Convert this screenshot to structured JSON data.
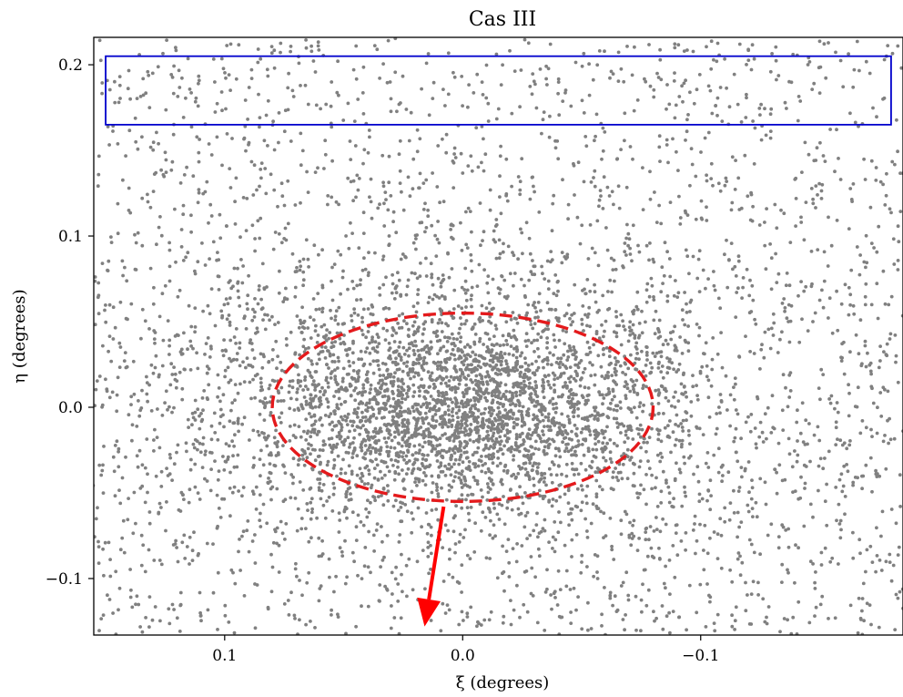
{
  "chart_data": {
    "type": "scatter",
    "title": "Cas III",
    "xlabel": "ξ (degrees)",
    "ylabel": "η (degrees)",
    "x_inverted": true,
    "xlim": [
      0.155,
      -0.185
    ],
    "ylim": [
      -0.133,
      0.216
    ],
    "xticks": [
      0.1,
      0.0,
      -0.1
    ],
    "xtick_labels": [
      "0.1",
      "0.0",
      "−0.1"
    ],
    "yticks": [
      -0.1,
      0.0,
      0.1,
      0.2
    ],
    "ytick_labels": [
      "−0.1",
      "0.0",
      "0.1",
      "0.2"
    ],
    "grid": false,
    "series": [
      {
        "marker_color": "#808080",
        "distribution": "dense concentration centered near (0.0, 0.0) elongated along ξ, with sparse uniform background across the field",
        "approx_point_count": 6000
      }
    ],
    "annotations": {
      "ellipse": {
        "center": [
          0.0,
          0.0
        ],
        "semi_axis_xi": 0.08,
        "semi_axis_eta": 0.055,
        "color": "#e41a1c",
        "style": "dashed"
      },
      "rectangle": {
        "xi_range": [
          0.15,
          -0.18
        ],
        "eta_range": [
          0.165,
          0.205
        ],
        "color": "#0000cc"
      },
      "arrow": {
        "from": [
          0.008,
          -0.058
        ],
        "to": [
          0.016,
          -0.128
        ],
        "color": "#ff0000"
      }
    }
  }
}
